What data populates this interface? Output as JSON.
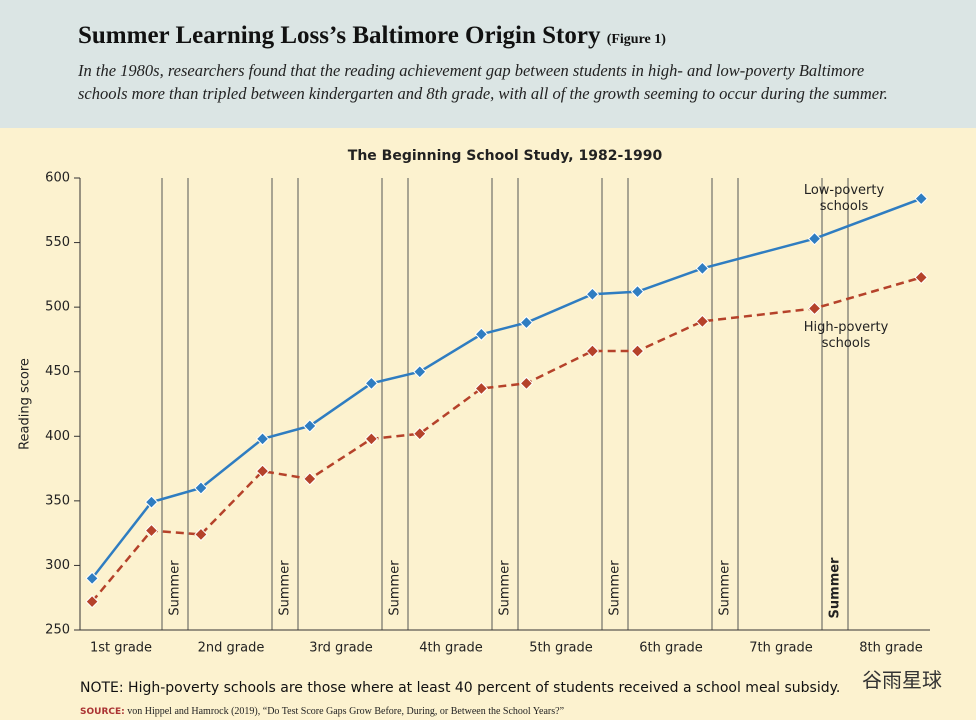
{
  "header": {
    "title": "Summer Learning Loss’s Baltimore Origin Story",
    "title_note": "(Figure 1)",
    "subtitle_lines": [
      "In the 1980s, researchers found that the reading achievement gap between students in high- and low-poverty Baltimore",
      "schools more than tripled between kindergarten and 8th grade, with all of the growth seeming to occur during the summer."
    ]
  },
  "chart_data": {
    "type": "line",
    "title": "The Beginning School Study, 1982-1990",
    "y_label": "Reading score",
    "grade_labels": [
      "1st grade",
      "2nd grade",
      "3rd grade",
      "4th grade",
      "5th grade",
      "6th grade",
      "7th grade",
      "8th grade"
    ],
    "summer_labels": [
      "Summer",
      "Summer",
      "Summer",
      "Summer",
      "Summer",
      "Summer",
      "Summer"
    ],
    "x": [
      0.11,
      0.65,
      1.1,
      1.66,
      2.09,
      2.65,
      3.09,
      3.65,
      4.06,
      4.66,
      5.07,
      5.66,
      6.68,
      7.65
    ],
    "xlim": [
      0,
      7.73
    ],
    "series": [
      {
        "name": "Low-poverty schools",
        "color": "#2f7dc1",
        "dashed": false,
        "values": [
          290,
          349,
          360,
          398,
          408,
          441,
          450,
          479,
          488,
          510,
          512,
          530,
          553,
          584
        ]
      },
      {
        "name": "High-poverty schools",
        "color": "#b5422a",
        "dashed": true,
        "values": [
          272,
          327,
          324,
          373,
          367,
          398,
          402,
          437,
          441,
          466,
          466,
          489,
          499,
          523
        ]
      }
    ],
    "ylim": [
      250,
      600
    ],
    "yticks": [
      250,
      300,
      350,
      400,
      450,
      500,
      550,
      600
    ],
    "grid": false
  },
  "footer": {
    "note": "NOTE: High-poverty schools are those where at least 40 percent of students received a school meal subsidy.",
    "source_label": "SOURCE:",
    "source": "von Hippel and Hamrock (2019), “Do Test Score Gaps Grow Before, During, or Between the School Years?”",
    "watermark": "谷雨星球"
  }
}
